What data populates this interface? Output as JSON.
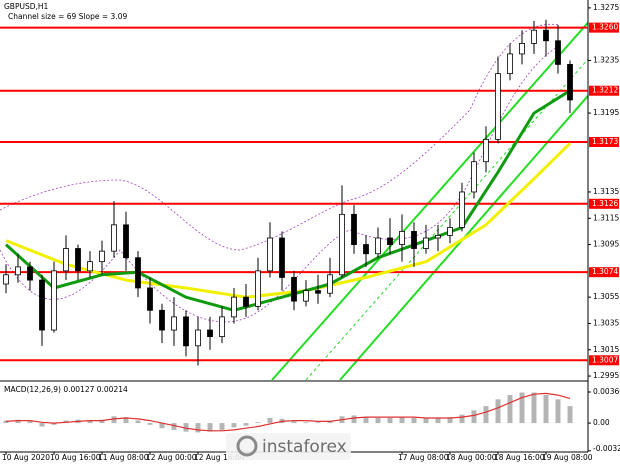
{
  "chart_data": {
    "type": "candlestick",
    "title": "GBPUSD,H1",
    "subtitle": "Channel size = 69 Slope = 3.09",
    "open": [
      1.3065,
      1.3072,
      1.3078,
      1.3068,
      1.303,
      1.3075,
      1.3092,
      1.3075,
      1.3082,
      1.309,
      1.311,
      1.3085,
      1.3062,
      1.3045,
      1.303,
      1.304,
      1.3018,
      1.303,
      1.3025,
      1.304,
      1.3055,
      1.3048,
      1.3075,
      1.31,
      1.307,
      1.3052,
      1.306,
      1.3058,
      1.3072,
      1.3118,
      1.3095,
      1.3088,
      1.31,
      1.3095,
      1.3105,
      1.3092,
      1.31,
      1.3102,
      1.3108,
      1.3135,
      1.3158,
      1.3175,
      1.3225,
      1.324,
      1.3248,
      1.3258,
      1.325,
      1.3232
    ],
    "high": [
      1.308,
      1.3088,
      1.3082,
      1.3072,
      1.3082,
      1.3102,
      1.3095,
      1.309,
      1.3098,
      1.3128,
      1.312,
      1.309,
      1.307,
      1.305,
      1.3055,
      1.3045,
      1.304,
      1.304,
      1.3048,
      1.3062,
      1.3065,
      1.3085,
      1.3112,
      1.3105,
      1.3075,
      1.3068,
      1.3072,
      1.3085,
      1.314,
      1.3125,
      1.3102,
      1.3108,
      1.3115,
      1.3118,
      1.3112,
      1.311,
      1.311,
      1.3115,
      1.3142,
      1.3165,
      1.3185,
      1.3238,
      1.3248,
      1.3258,
      1.3265,
      1.3266,
      1.3262,
      1.3235
    ],
    "low": [
      1.3058,
      1.3066,
      1.306,
      1.3018,
      1.3028,
      1.3068,
      1.3068,
      1.307,
      1.3072,
      1.3085,
      1.3075,
      1.3055,
      1.3035,
      1.302,
      1.3018,
      1.301,
      1.3003,
      1.3015,
      1.302,
      1.3035,
      1.304,
      1.3045,
      1.307,
      1.306,
      1.3045,
      1.3048,
      1.305,
      1.3055,
      1.307,
      1.3088,
      1.3078,
      1.3085,
      1.3088,
      1.3082,
      1.3078,
      1.3088,
      1.309,
      1.3096,
      1.3105,
      1.313,
      1.315,
      1.3172,
      1.322,
      1.3232,
      1.324,
      1.3238,
      1.3225,
      1.3195
    ],
    "close": [
      1.3072,
      1.3078,
      1.3068,
      1.303,
      1.3075,
      1.3092,
      1.3075,
      1.3082,
      1.309,
      1.311,
      1.3085,
      1.3062,
      1.3045,
      1.303,
      1.304,
      1.3018,
      1.303,
      1.3025,
      1.304,
      1.3055,
      1.3048,
      1.3075,
      1.31,
      1.307,
      1.3052,
      1.306,
      1.3058,
      1.3072,
      1.3118,
      1.3095,
      1.3088,
      1.31,
      1.3095,
      1.3105,
      1.3092,
      1.31,
      1.3102,
      1.3108,
      1.3135,
      1.3158,
      1.3175,
      1.3225,
      1.324,
      1.3248,
      1.3258,
      1.325,
      1.3232,
      1.3205
    ],
    "overlays": [
      {
        "color": "#f0f000",
        "x": [
          0,
          5,
          10,
          15,
          20,
          25,
          30,
          35,
          40,
          44,
          47
        ],
        "values": [
          1.3098,
          1.308,
          1.3068,
          1.3062,
          1.3055,
          1.306,
          1.307,
          1.3082,
          1.311,
          1.3145,
          1.3172
        ]
      },
      {
        "color": "#0f9a0f",
        "x": [
          0,
          4,
          8,
          11,
          15,
          19,
          23,
          27,
          31,
          35,
          38,
          41,
          44,
          47
        ],
        "values": [
          1.3095,
          1.3062,
          1.3072,
          1.3074,
          1.3055,
          1.3045,
          1.3055,
          1.3065,
          1.3085,
          1.3098,
          1.3108,
          1.315,
          1.3195,
          1.3212
        ]
      }
    ],
    "levels": [
      {
        "value": 1.326,
        "label": "1.3260"
      },
      {
        "value": 1.3212,
        "label": "1.3212"
      },
      {
        "value": 1.3173,
        "label": "1.3173"
      },
      {
        "value": 1.3126,
        "label": "1.3126"
      },
      {
        "value": 1.3074,
        "label": "1.3074"
      },
      {
        "value": 1.3007,
        "label": "1.3007"
      }
    ],
    "level_color": "#ff0000",
    "xlim": [
      -0.5,
      48.5
    ],
    "xticks": [
      {
        "value": 0,
        "label": "10 Aug 2020"
      },
      {
        "value": 4,
        "label": "10 Aug 16:00"
      },
      {
        "value": 8,
        "label": "11 Aug 08:00"
      },
      {
        "value": 12,
        "label": "12 Aug 00:00"
      },
      {
        "value": 16,
        "label": "12 Aug 16:00"
      },
      {
        "value": 33,
        "label": "17 Aug 08:00"
      },
      {
        "value": 37,
        "label": "18 Aug 00:00"
      },
      {
        "value": 41,
        "label": "18 Aug 16:00"
      },
      {
        "value": 45,
        "label": "19 Aug 08:00"
      }
    ],
    "ylim": [
      1.2992,
      1.3281
    ],
    "yticks": [
      1.3275,
      1.3235,
      1.3195,
      1.3135,
      1.3115,
      1.3095,
      1.3055,
      1.3035,
      1.3015,
      1.2995
    ],
    "macd": {
      "label": "MACD(12,26,9) 0.00127 0.00214",
      "histogram": [
        0.0003,
        0.0004,
        0.0002,
        -0.0004,
        -0.0002,
        0.0003,
        0.0004,
        0.0003,
        0.0004,
        0.0008,
        0.0007,
        0.0003,
        -0.0002,
        -0.0006,
        -0.0008,
        -0.001,
        -0.0011,
        -0.001,
        -0.0008,
        -0.0005,
        -0.0003,
        0.0001,
        0.0006,
        0.0005,
        0.0002,
        0.0001,
        0.0001,
        0.0003,
        0.0008,
        0.0009,
        0.0007,
        0.0006,
        0.0006,
        0.0007,
        0.0006,
        0.0006,
        0.0006,
        0.0007,
        0.001,
        0.0015,
        0.002,
        0.0028,
        0.0033,
        0.0036,
        0.0036,
        0.0033,
        0.0028,
        0.002
      ],
      "signal": [
        0.0002,
        0.0003,
        0.0003,
        0.0001,
        0,
        0.0001,
        0.0002,
        0.0003,
        0.0003,
        0.0005,
        0.0006,
        0.0005,
        0.0003,
        0,
        -0.0003,
        -0.0006,
        -0.0008,
        -0.0009,
        -0.0009,
        -0.0008,
        -0.0006,
        -0.0004,
        -0.0001,
        0.0002,
        0.0003,
        0.0003,
        0.0002,
        0.0002,
        0.0004,
        0.0006,
        0.0007,
        0.0007,
        0.0007,
        0.0007,
        0.0007,
        0.0006,
        0.0006,
        0.0006,
        0.0007,
        0.0009,
        0.0013,
        0.0018,
        0.0024,
        0.003,
        0.0034,
        0.0035,
        0.0033,
        0.0029
      ],
      "histogram_color": "#b4b4b4",
      "signal_color": "#e03030",
      "ylim": [
        -0.0034,
        0.0046
      ],
      "yticks": [
        0.00366,
        {
          "value": 0,
          "label": "0.00"
        },
        -0.00326
      ]
    },
    "watermark": "instaforex"
  }
}
